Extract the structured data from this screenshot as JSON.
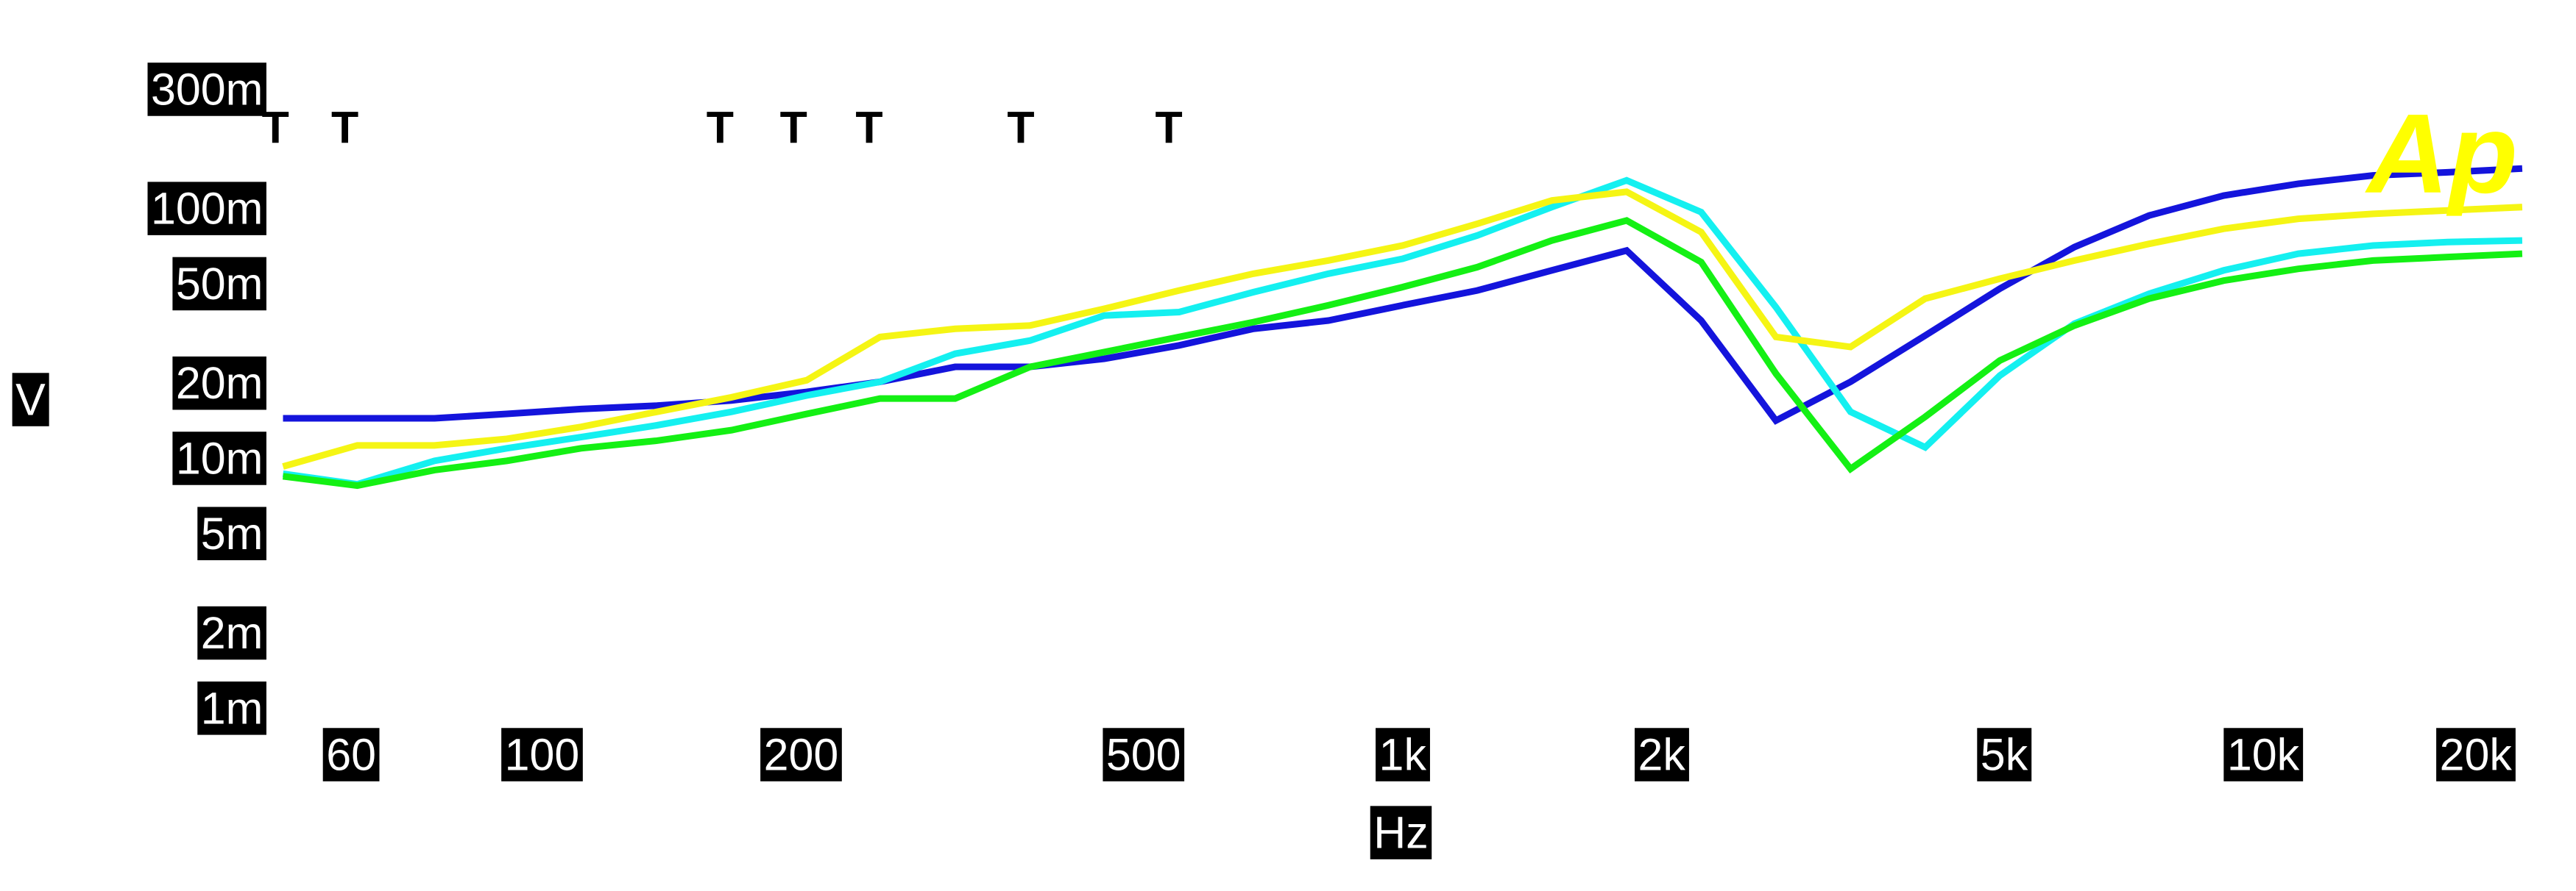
{
  "chart_data": {
    "type": "line",
    "x_label": "Hz",
    "y_label": "V",
    "logo": "Ap",
    "log_x": true,
    "log_y": true,
    "xlim": [
      50,
      20000
    ],
    "ylim": [
      0.001,
      0.3
    ],
    "xticks": [
      60,
      100,
      200,
      500,
      {
        "value": 1000,
        "label": "1k"
      },
      {
        "value": 2000,
        "label": "2k"
      },
      {
        "value": 5000,
        "label": "5k"
      },
      {
        "value": 10000,
        "label": "10k"
      },
      {
        "value": 20000,
        "label": "20k"
      }
    ],
    "yticks": [
      {
        "value": 0.001,
        "label": "1m"
      },
      {
        "value": 0.002,
        "label": "2m"
      },
      {
        "value": 0.005,
        "label": "5m"
      },
      {
        "value": 0.01,
        "label": "10m"
      },
      {
        "value": 0.02,
        "label": "20m"
      },
      {
        "value": 0.05,
        "label": "50m"
      },
      {
        "value": 0.1,
        "label": "100m"
      },
      {
        "value": 0.3,
        "label": "300m"
      }
    ],
    "annotations": [
      {
        "text": "T",
        "x": 49
      },
      {
        "text": "T",
        "x": 59
      },
      {
        "text": "T",
        "x": 161
      },
      {
        "text": "T",
        "x": 196
      },
      {
        "text": "T",
        "x": 240
      },
      {
        "text": "T",
        "x": 360
      },
      {
        "text": "T",
        "x": 535
      }
    ],
    "x": [
      50,
      61,
      75,
      91,
      111,
      136,
      166,
      203,
      247,
      302,
      369,
      450,
      550,
      671,
      820,
      1000,
      1221,
      1491,
      1821,
      2223,
      2715,
      3315,
      4048,
      4943,
      6035,
      7369,
      8998,
      10987,
      13415,
      16380,
      20000
    ],
    "series": [
      {
        "color": "#1414dc",
        "values": [
          0.0145,
          0.0145,
          0.0145,
          0.0151,
          0.0158,
          0.0163,
          0.0171,
          0.0185,
          0.0203,
          0.0233,
          0.0233,
          0.0251,
          0.0284,
          0.0331,
          0.0357,
          0.0411,
          0.0471,
          0.0567,
          0.0681,
          0.0357,
          0.0142,
          0.0203,
          0.0311,
          0.0479,
          0.0703,
          0.094,
          0.113,
          0.126,
          0.136,
          0.14,
          0.145
        ]
      },
      {
        "color": "#14f0f0",
        "values": [
          0.0087,
          0.0079,
          0.0098,
          0.011,
          0.0122,
          0.0136,
          0.0154,
          0.0179,
          0.0203,
          0.0263,
          0.0297,
          0.0374,
          0.0386,
          0.0464,
          0.055,
          0.0631,
          0.0782,
          0.1016,
          0.13,
          0.097,
          0.0404,
          0.0154,
          0.0111,
          0.0215,
          0.0347,
          0.0457,
          0.0567,
          0.0661,
          0.0713,
          0.0736,
          0.0747
        ]
      },
      {
        "color": "#f5f514",
        "values": [
          0.0093,
          0.0113,
          0.0113,
          0.012,
          0.0134,
          0.0154,
          0.0176,
          0.0206,
          0.0307,
          0.0331,
          0.0341,
          0.0398,
          0.0471,
          0.055,
          0.0621,
          0.0713,
          0.0871,
          0.108,
          0.117,
          0.0807,
          0.0307,
          0.028,
          0.0437,
          0.0525,
          0.0621,
          0.0724,
          0.0832,
          0.0912,
          0.0955,
          0.0985,
          0.1016
        ]
      },
      {
        "color": "#14f014",
        "values": [
          0.0085,
          0.0078,
          0.009,
          0.0098,
          0.011,
          0.0118,
          0.013,
          0.0151,
          0.0174,
          0.0174,
          0.0233,
          0.0267,
          0.0307,
          0.0352,
          0.0411,
          0.0486,
          0.0584,
          0.0747,
          0.0898,
          0.0612,
          0.0219,
          0.0091,
          0.0147,
          0.0247,
          0.0341,
          0.0437,
          0.0516,
          0.0575,
          0.0621,
          0.0641,
          0.0661
        ]
      }
    ]
  }
}
